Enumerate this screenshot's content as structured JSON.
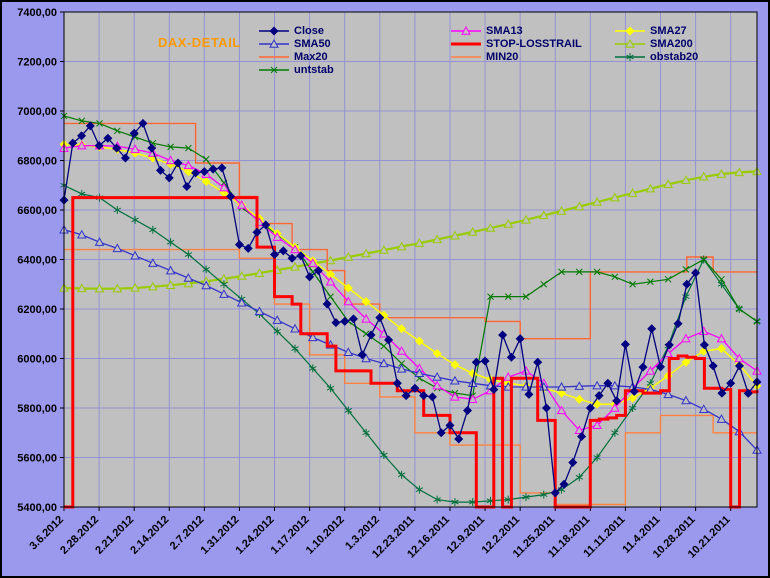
{
  "window": {
    "background": "#9a99ee",
    "plot_background": "#c0c0c0",
    "grid_color": "#9492d4",
    "axis_text_color": "#000000",
    "border_color": "#000000"
  },
  "chart_data": {
    "type": "line",
    "title": "DAX-DETAIL",
    "title_color": "#ff9900",
    "xlabel": "",
    "ylabel": "",
    "ylim": [
      5400,
      7400
    ],
    "y_tick_step": 200,
    "grid": true,
    "legend_position": "top-center",
    "y_tick_labels": [
      "7400,00",
      "7200,00",
      "7000,00",
      "6800,00",
      "6600,00",
      "6400,00",
      "6200,00",
      "6000,00",
      "5800,00",
      "5600,00",
      "5400,00"
    ],
    "x_tick_labels": [
      "3.6.2012",
      "2.28.2012",
      "2.21.2012",
      "2.14.2012",
      "2.7.2012",
      "1.31.2012",
      "1.24.2012",
      "1.17.2012",
      "1.10.2012",
      "1.3.2012",
      "12.23.2011",
      "12.16.2011",
      "12.9.2011",
      "12.2.2011",
      "11.25.2011",
      "11.18.2011",
      "11.11.2011",
      "11.4.2011",
      "10.28.2011",
      "10.21.2011"
    ],
    "x_axis_note": "time runs newest (left) to oldest (right)",
    "series": [
      {
        "name": "SMA200",
        "color": "#99cc00",
        "width": 2.2,
        "marker": "triangle",
        "step": false,
        "legend_col": 2,
        "legend_row": 1,
        "values": [
          6285,
          6283,
          6282,
          6282,
          6285,
          6290,
          6296,
          6303,
          6312,
          6322,
          6333,
          6345,
          6357,
          6370,
          6383,
          6396,
          6410,
          6424,
          6438,
          6452,
          6466,
          6481,
          6496,
          6511,
          6527,
          6543,
          6560,
          6578,
          6596,
          6614,
          6632,
          6650,
          6668,
          6686,
          6704,
          6720,
          6734,
          6745,
          6752,
          6756
        ]
      },
      {
        "name": "Max20",
        "color": "#ff6633",
        "width": 1.4,
        "marker": "none",
        "step": true,
        "legend_col": 0,
        "legend_row": 2,
        "values": [
          6950,
          6950,
          6950,
          6950,
          6950,
          6950,
          6950,
          6950,
          6950,
          6950,
          6950,
          6950,
          6950,
          6950,
          6950,
          6790,
          6790,
          6790,
          6790,
          6790,
          6655,
          6655,
          6545,
          6545,
          6545,
          6545,
          6440,
          6440,
          6440,
          6440,
          6355,
          6355,
          6220,
          6220,
          6220,
          6220,
          6165,
          6165,
          6165,
          6165,
          6165,
          6165,
          6165,
          6165,
          6165,
          6165,
          6165,
          6165,
          6150,
          6150,
          6150,
          6150,
          6080,
          6080,
          6080,
          6080,
          6080,
          6080,
          6080,
          6080,
          6350,
          6350,
          6350,
          6350,
          6350,
          6350,
          6350,
          6350,
          6350,
          6350,
          6350,
          6410,
          6410,
          6410,
          6350,
          6350,
          6350,
          6350,
          6350,
          6350
        ]
      },
      {
        "name": "MIN20",
        "color": "#ff8040",
        "width": 1.4,
        "marker": "none",
        "step": true,
        "legend_col": 1,
        "legend_row": 2,
        "values": [
          6440,
          6440,
          6440,
          6440,
          6440,
          6440,
          6440,
          6440,
          6440,
          6440,
          6440,
          6440,
          6440,
          6440,
          6440,
          6440,
          6440,
          6440,
          6440,
          6440,
          6405,
          6405,
          6405,
          6405,
          6220,
          6220,
          6220,
          6220,
          6015,
          6015,
          6015,
          6015,
          5900,
          5900,
          5900,
          5900,
          5845,
          5845,
          5845,
          5845,
          5700,
          5700,
          5700,
          5700,
          5650,
          5650,
          5650,
          5650,
          5650,
          5650,
          5650,
          5650,
          5457,
          5457,
          5457,
          5457,
          5410,
          5410,
          5410,
          5410,
          5410,
          5410,
          5410,
          5410,
          5700,
          5700,
          5700,
          5700,
          5770,
          5770,
          5770,
          5770,
          5770,
          5770,
          5700,
          5700,
          5700,
          5700,
          5700,
          5700
        ]
      },
      {
        "name": "obstab20",
        "color": "#00703c",
        "width": 1.2,
        "marker": "star",
        "step": false,
        "legend_col": 2,
        "legend_row": 2,
        "values": [
          6700,
          6665,
          6650,
          6600,
          6560,
          6520,
          6470,
          6420,
          6360,
          6300,
          6240,
          6180,
          6110,
          6040,
          5960,
          5880,
          5790,
          5700,
          5610,
          5530,
          5470,
          5430,
          5420,
          5420,
          5425,
          5430,
          5440,
          5450,
          5470,
          5520,
          5600,
          5700,
          5800,
          5900,
          6050,
          6250,
          6400,
          6300,
          6200,
          6150
        ]
      },
      {
        "name": "untstab",
        "color": "#007a00",
        "width": 1.2,
        "marker": "x",
        "step": false,
        "legend_col": 0,
        "legend_row": 3,
        "values": [
          6980,
          6960,
          6950,
          6920,
          6895,
          6870,
          6855,
          6850,
          6805,
          6710,
          6610,
          6555,
          6500,
          6450,
          6350,
          6250,
          6150,
          6100,
          6050,
          5980,
          5920,
          5880,
          5860,
          5850,
          6250,
          6250,
          6250,
          6300,
          6350,
          6350,
          6350,
          6330,
          6300,
          6310,
          6320,
          6360,
          6400,
          6320,
          6200,
          6150
        ]
      },
      {
        "name": "SMA27",
        "color": "#ffff00",
        "width": 1.5,
        "marker": "diamond",
        "step": false,
        "legend_col": 2,
        "legend_row": 0,
        "values": [
          6865,
          6862,
          6855,
          6845,
          6830,
          6810,
          6785,
          6755,
          6715,
          6670,
          6620,
          6565,
          6505,
          6450,
          6395,
          6340,
          6285,
          6230,
          6175,
          6120,
          6070,
          6020,
          5975,
          5940,
          5915,
          5900,
          5890,
          5880,
          5860,
          5835,
          5815,
          5815,
          5840,
          5880,
          5930,
          5985,
          6030,
          6040,
          5975,
          5890
        ]
      },
      {
        "name": "SMA13",
        "color": "#ff00ff",
        "width": 1.3,
        "marker": "triangle",
        "step": false,
        "legend_col": 1,
        "legend_row": 0,
        "values": [
          6850,
          6860,
          6860,
          6858,
          6845,
          6830,
          6800,
          6780,
          6745,
          6690,
          6620,
          6550,
          6490,
          6440,
          6385,
          6310,
          6230,
          6160,
          6100,
          6030,
          5960,
          5890,
          5845,
          5835,
          5870,
          5925,
          5950,
          5900,
          5790,
          5710,
          5730,
          5800,
          5880,
          5950,
          6020,
          6080,
          6110,
          6080,
          6000,
          5950
        ]
      },
      {
        "name": "SMA50",
        "color": "#3333cc",
        "width": 1.3,
        "marker": "triangle",
        "step": false,
        "legend_col": 0,
        "legend_row": 1,
        "values": [
          6520,
          6500,
          6470,
          6445,
          6415,
          6385,
          6355,
          6325,
          6295,
          6260,
          6225,
          6190,
          6155,
          6120,
          6085,
          6055,
          6025,
          6000,
          5980,
          5958,
          5940,
          5925,
          5910,
          5900,
          5890,
          5885,
          5885,
          5885,
          5885,
          5888,
          5890,
          5890,
          5885,
          5875,
          5855,
          5830,
          5795,
          5755,
          5705,
          5630
        ]
      },
      {
        "name": "STOP-LOSSTRAIL",
        "color": "#ff0000",
        "width": 3,
        "marker": "none",
        "step": true,
        "legend_col": 1,
        "legend_row": 1,
        "values": [
          5400,
          6650,
          6650,
          6650,
          6650,
          6650,
          6650,
          6650,
          6650,
          6650,
          6650,
          6650,
          6650,
          6650,
          6650,
          6650,
          6650,
          6650,
          6650,
          6650,
          6650,
          6650,
          6450,
          6450,
          6250,
          6250,
          6220,
          6100,
          6100,
          6100,
          6050,
          5950,
          5950,
          5950,
          5950,
          5900,
          5900,
          5900,
          5870,
          5870,
          5870,
          5770,
          5770,
          5770,
          5700,
          5700,
          5700,
          5400,
          5400,
          5920,
          5400,
          5920,
          5920,
          5920,
          5750,
          5750,
          5400,
          5400,
          5400,
          5400,
          5750,
          5755,
          5760,
          5770,
          5870,
          5870,
          5860,
          5860,
          5870,
          6000,
          6010,
          6005,
          6000,
          5880,
          5880,
          5875,
          5400,
          5870,
          5865,
          5860
        ]
      },
      {
        "name": "Close",
        "color": "#000080",
        "width": 1.3,
        "marker": "diamond",
        "step": false,
        "legend_col": 0,
        "legend_row": 0,
        "values": [
          6640,
          6870,
          6900,
          6940,
          6860,
          6890,
          6850,
          6810,
          6910,
          6950,
          6850,
          6760,
          6730,
          6790,
          6695,
          6750,
          6755,
          6765,
          6770,
          6655,
          6460,
          6445,
          6510,
          6540,
          6420,
          6435,
          6405,
          6415,
          6330,
          6355,
          6220,
          6145,
          6150,
          6160,
          6015,
          6095,
          6165,
          6075,
          5900,
          5850,
          5880,
          5850,
          5845,
          5700,
          5730,
          5675,
          5790,
          5985,
          5990,
          5875,
          6095,
          6005,
          6080,
          5855,
          5985,
          5800,
          5457,
          5492,
          5580,
          5685,
          5800,
          5850,
          5900,
          5829,
          6057,
          5867,
          5965,
          6120,
          5966,
          6055,
          6141,
          6300,
          6346,
          6055,
          5970,
          5860,
          5900,
          5970,
          5859,
          5905
        ]
      }
    ]
  }
}
